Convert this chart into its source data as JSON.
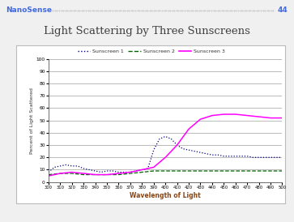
{
  "title": "Light Scattering by Three Sunscreens",
  "header_text": "NanoSense",
  "header_number": "44",
  "xlabel": "Wavelength of Light",
  "ylabel": "Percent of Light Scattered",
  "xlim": [
    300,
    500
  ],
  "ylim": [
    0,
    100
  ],
  "xticks": [
    300,
    310,
    320,
    330,
    340,
    350,
    360,
    370,
    380,
    390,
    400,
    410,
    420,
    430,
    440,
    450,
    460,
    470,
    480,
    490,
    500
  ],
  "yticks": [
    0,
    10,
    20,
    30,
    40,
    50,
    60,
    70,
    80,
    90,
    100
  ],
  "legend_labels": [
    "Sunscreen 1",
    "Sunscreen 2",
    "Sunscreen 3"
  ],
  "sunscreen1_color": "#000080",
  "sunscreen2_color": "#006400",
  "sunscreen3_color": "#FF00FF",
  "background_color": "#f0f0f0",
  "plot_bg_color": "#ffffff",
  "sunscreen1_x": [
    300,
    305,
    310,
    315,
    320,
    325,
    330,
    335,
    340,
    345,
    350,
    355,
    360,
    365,
    370,
    375,
    380,
    385,
    390,
    395,
    400,
    405,
    410,
    415,
    420,
    425,
    430,
    435,
    440,
    445,
    450,
    455,
    460,
    465,
    470,
    475,
    480,
    485,
    490,
    495,
    500
  ],
  "sunscreen1_y": [
    8,
    12,
    13,
    14,
    13,
    13,
    11,
    10,
    9,
    8,
    9,
    9,
    8,
    8,
    8,
    9,
    10,
    11,
    26,
    35,
    37,
    35,
    30,
    27,
    26,
    25,
    24,
    23,
    22,
    22,
    21,
    21,
    21,
    21,
    21,
    20,
    20,
    20,
    20,
    20,
    20
  ],
  "sunscreen2_x": [
    300,
    310,
    320,
    330,
    340,
    350,
    360,
    370,
    380,
    390,
    400,
    410,
    420,
    430,
    440,
    450,
    460,
    470,
    480,
    490,
    500
  ],
  "sunscreen2_y": [
    6,
    7,
    7,
    6,
    6,
    6,
    6,
    7,
    8,
    9,
    9,
    9,
    9,
    9,
    9,
    9,
    9,
    9,
    9,
    9,
    9
  ],
  "sunscreen3_x": [
    300,
    310,
    320,
    330,
    340,
    350,
    360,
    370,
    380,
    390,
    400,
    410,
    420,
    430,
    440,
    450,
    460,
    470,
    480,
    490,
    500
  ],
  "sunscreen3_y": [
    5,
    7,
    8,
    7,
    6,
    6,
    7,
    8,
    10,
    12,
    20,
    30,
    43,
    51,
    54,
    55,
    55,
    54,
    53,
    52,
    52
  ]
}
